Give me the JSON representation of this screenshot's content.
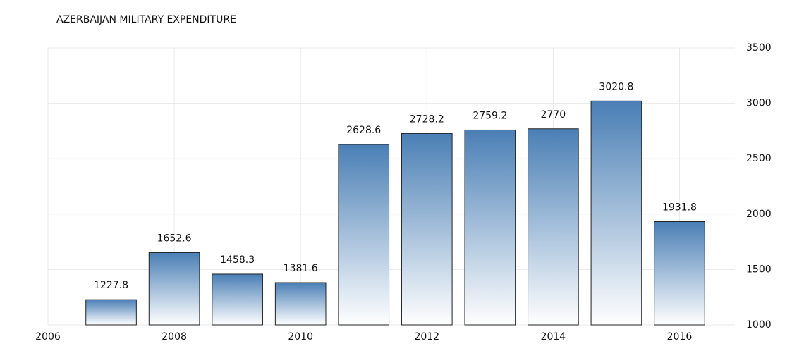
{
  "chart_data": {
    "type": "bar",
    "title": "AZERBAIJAN MILITARY EXPENDITURE",
    "x": [
      2007,
      2008,
      2009,
      2010,
      2011,
      2012,
      2013,
      2014,
      2015,
      2016
    ],
    "values": [
      1227.8,
      1652.6,
      1458.3,
      1381.6,
      2628.6,
      2728.2,
      2759.2,
      2770,
      3020.8,
      1931.8
    ],
    "color": "#4a7fb5",
    "xlim": [
      2006,
      2017
    ],
    "xticks": [
      2006,
      2008,
      2010,
      2012,
      2014,
      2016
    ],
    "ylim": [
      1000,
      3500
    ],
    "yticks": [
      1000,
      1500,
      2000,
      2500,
      3000,
      3500
    ],
    "grid": true
  }
}
